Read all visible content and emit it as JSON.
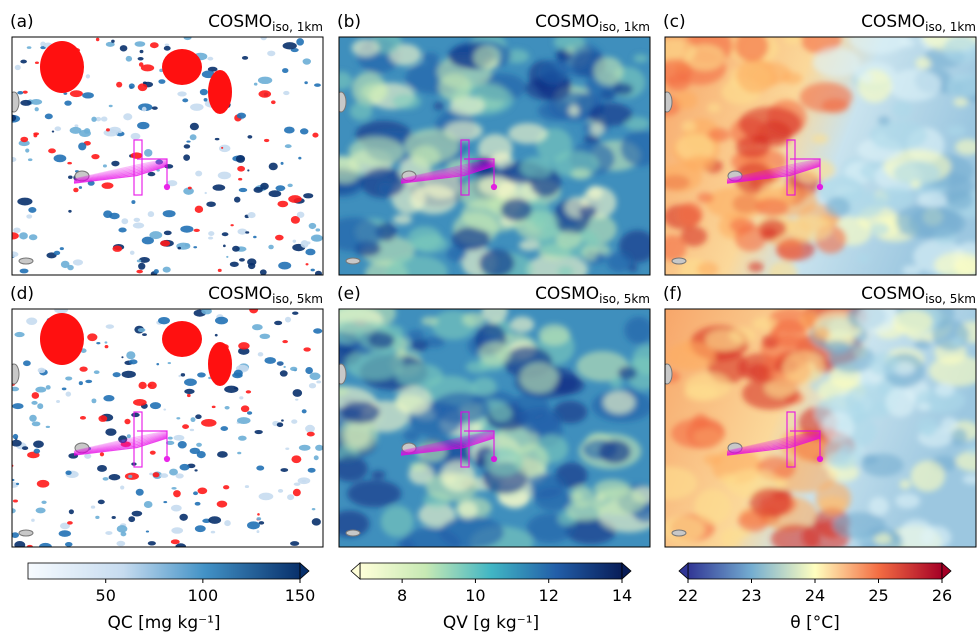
{
  "panels": [
    {
      "label": "(a)",
      "title": {
        "main": "COSMO",
        "sub": "iso, 1km"
      }
    },
    {
      "label": "(b)",
      "title": {
        "main": "COSMO",
        "sub": "iso, 1km"
      }
    },
    {
      "label": "(c)",
      "title": {
        "main": "COSMO",
        "sub": "iso, 1km"
      }
    },
    {
      "label": "(d)",
      "title": {
        "main": "COSMO",
        "sub": "iso, 5km"
      }
    },
    {
      "label": "(e)",
      "title": {
        "main": "COSMO",
        "sub": "iso, 5km"
      }
    },
    {
      "label": "(f)",
      "title": {
        "main": "COSMO",
        "sub": "iso, 5km"
      }
    }
  ],
  "colorbars": [
    {
      "label": "QC [mg kg⁻¹]",
      "lim": [
        10,
        150
      ],
      "ticks": [
        50,
        100,
        150
      ]
    },
    {
      "label": "QV [g kg⁻¹]",
      "lim": [
        6.85,
        14
      ],
      "ticks": [
        8,
        10,
        12,
        14
      ]
    },
    {
      "label": "θ [°C]",
      "lim": [
        22,
        26
      ],
      "ticks": [
        22,
        23,
        24,
        25,
        26
      ]
    }
  ]
}
